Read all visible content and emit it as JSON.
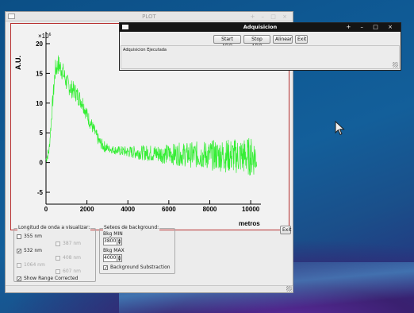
{
  "plot_window": {
    "title": "PLOT",
    "title_controls": "+ – □ ×",
    "chart": {
      "ylabel": "A.U.",
      "y_multiplier": "×10",
      "y_multiplier_exp": "6",
      "xlabel": "metros",
      "x_ticks": [
        "0",
        "2000",
        "4000",
        "6000",
        "8000",
        "10000"
      ],
      "y_ticks": [
        "20",
        "15",
        "10",
        "5",
        "0",
        "-5"
      ],
      "line_color": "#33ee33",
      "frame_color": "#b83030"
    },
    "wavelength_group": {
      "title": "Longitud de onda a visualizar:",
      "items": [
        {
          "label": "355 nm",
          "checked": false,
          "enabled": true
        },
        {
          "label": "387 nm",
          "checked": false,
          "enabled": false
        },
        {
          "label": "532 nm",
          "checked": true,
          "enabled": true
        },
        {
          "label": "408 nm",
          "checked": false,
          "enabled": false
        },
        {
          "label": "1064 nm",
          "checked": false,
          "enabled": false
        },
        {
          "label": "607 nm",
          "checked": false,
          "enabled": false
        }
      ],
      "show_range": {
        "label": "Show Range Corrected",
        "checked": true
      }
    },
    "background_group": {
      "title": "Seteos de background:",
      "min_label": "Bkg MIN",
      "min_value": "3800",
      "max_label": "Bkg MAX",
      "max_value": "4000",
      "subtraction": {
        "label": "Background Substraction",
        "checked": true
      }
    },
    "exit_label": "Exit"
  },
  "adq_window": {
    "title": "Adquisicion",
    "title_controls": "+ – □ ×",
    "buttons": {
      "start": "Start ADQ",
      "stop": "Stop ADQ",
      "align": "Alinear",
      "exit": "Exit"
    },
    "log_text": "Adquisicion Ejecutada"
  },
  "chart_data": {
    "type": "line",
    "xlabel": "metros",
    "ylabel": "A.U.",
    "xlim": [
      0,
      10500
    ],
    "ylim": [
      -7,
      22
    ],
    "y_scale_note": "×10^6",
    "grid": false,
    "x": [
      0,
      150,
      300,
      450,
      600,
      800,
      1000,
      1200,
      1400,
      1600,
      1800,
      2000,
      2200,
      2400,
      2600,
      2800,
      3000,
      3500,
      4000,
      4500,
      5000,
      5500,
      6000,
      6500,
      7000,
      7500,
      8000,
      8500,
      9000,
      9500,
      10000,
      10300
    ],
    "values": [
      0.5,
      2,
      9,
      15.5,
      16.5,
      15.5,
      13.5,
      12.5,
      12,
      11,
      10,
      8,
      6.5,
      5,
      3.5,
      2.8,
      2.4,
      2,
      1.8,
      1.7,
      1.6,
      1.5,
      1.4,
      1.4,
      1.3,
      1.3,
      1.2,
      1.2,
      1.1,
      1.1,
      1,
      1
    ]
  }
}
